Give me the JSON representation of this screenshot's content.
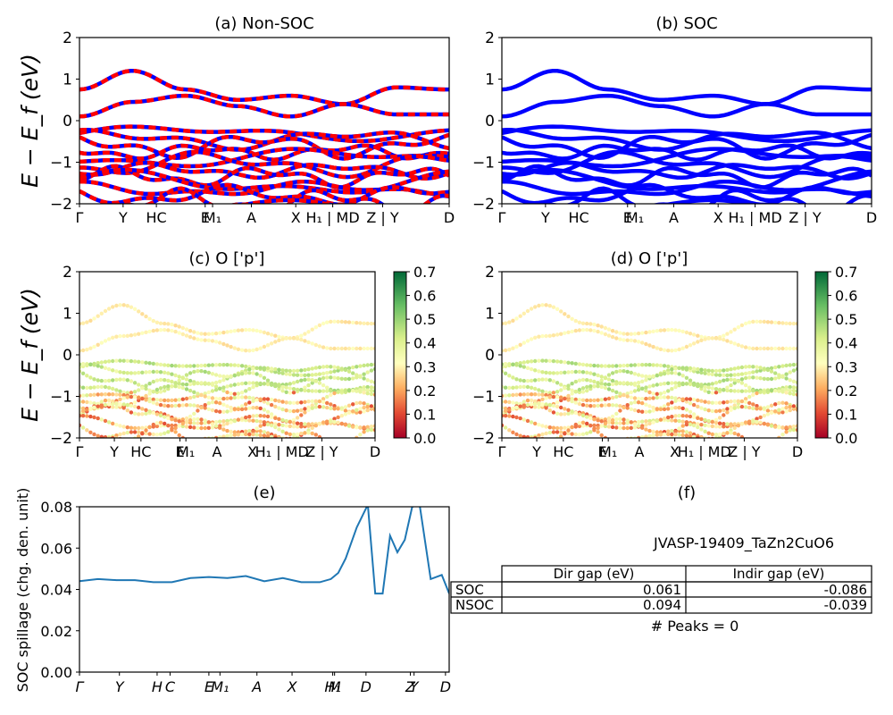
{
  "figure": {
    "panels": {
      "a": {
        "title": "(a) Non-SOC"
      },
      "b": {
        "title": "(b) SOC"
      },
      "c": {
        "title": "(c)  O ['p']"
      },
      "d": {
        "title": "(d) O ['p']"
      },
      "e": {
        "title": "(e)"
      },
      "f": {
        "title": "(f)"
      }
    },
    "band_ylabel": "E − E_f (eV)",
    "spillage_ylabel": "SOC spillage (chg. den. unit)",
    "colors": {
      "nonsoc_dash": "#ff0000",
      "band": "#0000ff",
      "spillage": "#1f77b4"
    }
  },
  "chart_data": [
    {
      "type": "line",
      "panel": "a",
      "title": "(a) Non-SOC",
      "ylabel": "E − E_f (eV)",
      "ylim": [
        -2,
        2
      ],
      "yticks": [
        "2",
        "1",
        "0",
        "−1",
        "−2"
      ],
      "kpath": [
        "Γ",
        "Y",
        "HC",
        "E",
        "M₁",
        "A",
        "X",
        "H₁ | MD",
        "Z | Y",
        "D"
      ],
      "series": [
        {
          "values": [
            0.75,
            1.2,
            0.75,
            0.5,
            0.6,
            0.4,
            0.8
          ]
        },
        {
          "values": [
            0.1,
            0.45,
            0.6,
            0.35,
            0.1,
            0.4,
            0.15
          ]
        }
      ]
    },
    {
      "type": "line",
      "panel": "b",
      "title": "(b) SOC",
      "ylim": [
        -2,
        2
      ],
      "yticks": [
        "2",
        "1",
        "0",
        "−1",
        "−2"
      ],
      "kpath": [
        "Γ",
        "Y",
        "HC",
        "E",
        "M₁",
        "A",
        "X",
        "H₁ | MD",
        "Z | Y",
        "D"
      ]
    },
    {
      "type": "scatter",
      "panel": "c",
      "title": "(c)  O ['p']",
      "ylabel": "E − E_f (eV)",
      "ylim": [
        -2,
        2
      ],
      "yticks": [
        "2",
        "1",
        "0",
        "−1",
        "−2"
      ],
      "colorbar": {
        "min": 0.0,
        "max": 0.7,
        "ticks": [
          "0.7",
          "0.6",
          "0.5",
          "0.4",
          "0.3",
          "0.2",
          "0.1",
          "0.0"
        ]
      },
      "kpath": [
        "Γ",
        "Y",
        "HC",
        "E",
        "M₁",
        "A",
        "X",
        "H₁ | MD",
        "Z | Y",
        "D"
      ]
    },
    {
      "type": "scatter",
      "panel": "d",
      "title": "(d) O ['p']",
      "ylim": [
        -2,
        2
      ],
      "yticks": [
        "2",
        "1",
        "0",
        "−1",
        "−2"
      ],
      "colorbar": {
        "min": 0.0,
        "max": 0.7,
        "ticks": [
          "0.7",
          "0.6",
          "0.5",
          "0.4",
          "0.3",
          "0.2",
          "0.1",
          "0.0"
        ]
      },
      "kpath": [
        "Γ",
        "Y",
        "HC",
        "E",
        "M₁",
        "A",
        "X",
        "H₁ | MD",
        "Z | Y",
        "D"
      ]
    },
    {
      "type": "line",
      "panel": "e",
      "title": "(e)",
      "ylabel": "SOC spillage (chg. den. unit)",
      "ylim": [
        0.0,
        0.08
      ],
      "yticks": [
        "0.08",
        "0.06",
        "0.04",
        "0.02",
        "0.00"
      ],
      "kpath": [
        "Γ",
        "Y",
        "H",
        "C",
        "E",
        "M₁",
        "A",
        "X",
        "H₁",
        "M",
        "D",
        "Z",
        "Y",
        "D"
      ],
      "series": [
        {
          "x": [
            0,
            5,
            10,
            15,
            20,
            25,
            30,
            35,
            40,
            45,
            50,
            55,
            60,
            65,
            68,
            70,
            72,
            75,
            78,
            80,
            82,
            84,
            85,
            86,
            88,
            90,
            92,
            95,
            98,
            100
          ],
          "values": [
            0.044,
            0.045,
            0.0445,
            0.0445,
            0.0435,
            0.0435,
            0.0455,
            0.046,
            0.0455,
            0.0465,
            0.044,
            0.0455,
            0.0435,
            0.0435,
            0.045,
            0.048,
            0.055,
            0.07,
            0.081,
            0.038,
            0.038,
            0.066,
            0.062,
            0.058,
            0.064,
            0.08,
            0.081,
            0.045,
            0.047,
            0.038
          ]
        }
      ]
    },
    {
      "type": "table",
      "panel": "f",
      "title": "(f)",
      "material": "JVASP-19409_TaZn2CuO6",
      "columns": [
        "Dir gap (eV)",
        "Indir gap (eV)"
      ],
      "rows": [
        {
          "label": "SOC",
          "values": [
            "0.061",
            "-0.086"
          ]
        },
        {
          "label": "NSOC",
          "values": [
            "0.094",
            "-0.039"
          ]
        }
      ],
      "peaks": "# Peaks = 0"
    }
  ]
}
